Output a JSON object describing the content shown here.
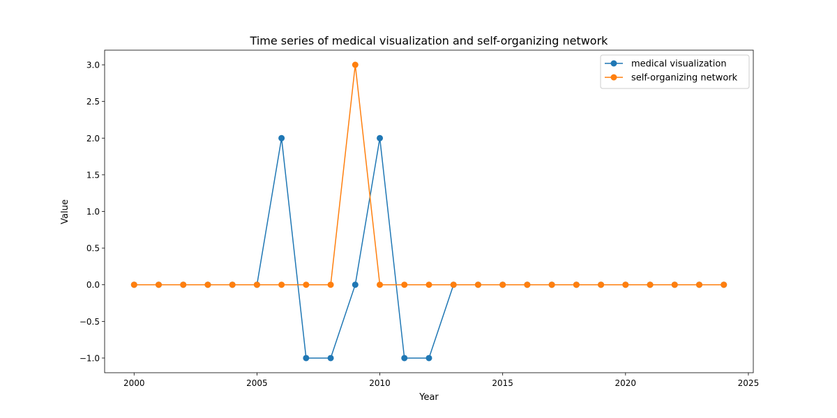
{
  "chart_data": {
    "type": "line",
    "title": "Time series of medical visualization and self-organizing network",
    "xlabel": "Year",
    "ylabel": "Value",
    "x": [
      2000,
      2001,
      2002,
      2003,
      2004,
      2005,
      2006,
      2007,
      2008,
      2009,
      2010,
      2011,
      2012,
      2013,
      2014,
      2015,
      2016,
      2017,
      2018,
      2019,
      2020,
      2021,
      2022,
      2023,
      2024
    ],
    "xlim": [
      1998.8,
      2025.2
    ],
    "ylim": [
      -1.2,
      3.2
    ],
    "xticks": [
      2000,
      2005,
      2010,
      2015,
      2020,
      2025
    ],
    "yticks": [
      -1.0,
      -0.5,
      0.0,
      0.5,
      1.0,
      1.5,
      2.0,
      2.5,
      3.0
    ],
    "xtick_labels": [
      "2000",
      "2005",
      "2010",
      "2015",
      "2020",
      "2025"
    ],
    "ytick_labels": [
      "−1.0",
      "−0.5",
      "0.0",
      "0.5",
      "1.0",
      "1.5",
      "2.0",
      "2.5",
      "3.0"
    ],
    "grid": false,
    "legend_position": "top-right",
    "series": [
      {
        "name": "medical visualization",
        "color": "#1f77b4",
        "values": [
          0,
          0,
          0,
          0,
          0,
          0,
          2,
          -1,
          -1,
          0,
          2,
          -1,
          -1,
          0,
          0,
          0,
          0,
          0,
          0,
          0,
          0,
          0,
          0,
          0,
          0
        ]
      },
      {
        "name": "self-organizing network",
        "color": "#ff7f0e",
        "values": [
          0,
          0,
          0,
          0,
          0,
          0,
          0,
          0,
          0,
          3,
          0,
          0,
          0,
          0,
          0,
          0,
          0,
          0,
          0,
          0,
          0,
          0,
          0,
          0,
          0
        ]
      }
    ]
  }
}
